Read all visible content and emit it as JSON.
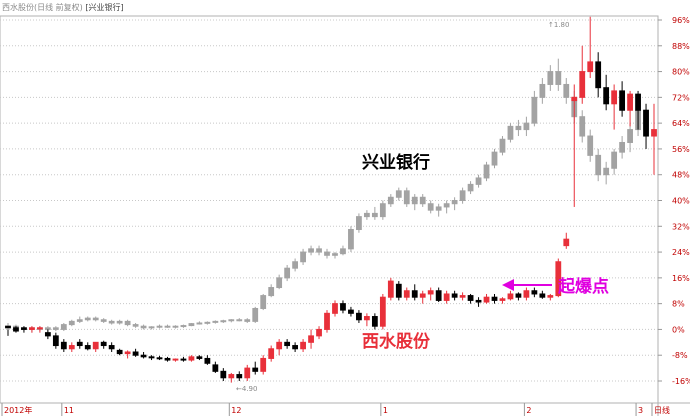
{
  "header": {
    "primary": "西水股份(日线 前复权)",
    "secondary": "[兴业银行]"
  },
  "chart_data": {
    "type": "candlestick",
    "yunit": "%",
    "ylim": [
      -20,
      100
    ],
    "yticks": [
      "96%",
      "88%",
      "80%",
      "72%",
      "64%",
      "56%",
      "48%",
      "40%",
      "32%",
      "24%",
      "16%",
      "8%",
      "0%",
      "-8%",
      "-16%"
    ],
    "ytick_values": [
      96,
      88,
      80,
      72,
      64,
      56,
      48,
      40,
      32,
      24,
      16,
      8,
      0,
      -8,
      -16
    ],
    "xlabels": [
      {
        "text": "2012年",
        "index": 0
      },
      {
        "text": "11",
        "index": 7
      },
      {
        "text": "12",
        "index": 28
      },
      {
        "text": "1",
        "index": 47
      },
      {
        "text": "2",
        "index": 65
      },
      {
        "text": "3",
        "index": 79
      },
      {
        "text": "日线",
        "index": 81
      }
    ],
    "annotations": {
      "series_a_label": "兴业银行",
      "series_b_label": "西水股份",
      "arrow_label": "起爆点",
      "high_label": "↑1.80",
      "low_label": "←4.90"
    },
    "colors": {
      "up": "#e8303a",
      "down": "#000000",
      "overlay": "#a3a3a3",
      "arrow": "#e000e0",
      "axis_text": "#c00000"
    },
    "series": [
      {
        "name": "西水股份",
        "kind": "candle",
        "ohlc": [
          [
            1,
            0,
            -2,
            0.5
          ],
          [
            0.5,
            1,
            -1,
            -0.5
          ],
          [
            0.5,
            1,
            -1,
            0
          ],
          [
            0,
            1,
            -1,
            0.5
          ],
          [
            0.5,
            1,
            -1,
            0.5
          ],
          [
            -1,
            0,
            -3,
            -2
          ],
          [
            -2,
            -1,
            -6,
            -5
          ],
          [
            -4,
            -3,
            -7,
            -6
          ],
          [
            -6,
            -4,
            -7,
            -5
          ],
          [
            -4,
            -3,
            -6,
            -5
          ],
          [
            -5,
            -4,
            -6.5,
            -6
          ],
          [
            -6,
            -4,
            -7,
            -4
          ],
          [
            -4,
            -3.5,
            -6,
            -5
          ],
          [
            -5,
            -4,
            -7,
            -6
          ],
          [
            -6.5,
            -6,
            -8,
            -7.5
          ],
          [
            -7.5,
            -6.5,
            -9,
            -7
          ],
          [
            -7,
            -6,
            -8.5,
            -8
          ],
          [
            -8,
            -7,
            -9,
            -8.5
          ],
          [
            -8.5,
            -8,
            -9.5,
            -8.8
          ],
          [
            -8.8,
            -8.2,
            -9.5,
            -9
          ],
          [
            -9,
            -8.5,
            -10,
            -9.5
          ],
          [
            -9.5,
            -9,
            -10,
            -9.2
          ],
          [
            -9.2,
            -8.5,
            -10,
            -9.5
          ],
          [
            -9.5,
            -8,
            -10,
            -8.5
          ],
          [
            -8.5,
            -8,
            -9.5,
            -9
          ],
          [
            -9,
            -8,
            -11,
            -10.5
          ],
          [
            -11,
            -10,
            -13.5,
            -13
          ],
          [
            -13,
            -12,
            -16,
            -15
          ],
          [
            -15,
            -13.5,
            -16.5,
            -14
          ],
          [
            -14,
            -13,
            -16,
            -15
          ],
          [
            -15,
            -11,
            -16,
            -12
          ],
          [
            -12,
            -10,
            -14,
            -13
          ],
          [
            -13,
            -8,
            -14,
            -9
          ],
          [
            -9,
            -5,
            -10,
            -6
          ],
          [
            -6,
            -3,
            -8,
            -4
          ],
          [
            -4,
            -3,
            -6,
            -5
          ],
          [
            -5,
            -4,
            -7,
            -6
          ],
          [
            -6,
            -3,
            -7,
            -4
          ],
          [
            -4,
            0,
            -6,
            -2
          ],
          [
            -2,
            1,
            -3,
            0
          ],
          [
            0,
            6,
            -1,
            5
          ],
          [
            5,
            9,
            4,
            8
          ],
          [
            8,
            9,
            5,
            6
          ],
          [
            6,
            7,
            4,
            5
          ],
          [
            5,
            6,
            2,
            3
          ],
          [
            3,
            5,
            1,
            4
          ],
          [
            4,
            5,
            0,
            1
          ],
          [
            1,
            11,
            0,
            10
          ],
          [
            10,
            16,
            9,
            15
          ],
          [
            14,
            15,
            9,
            10
          ],
          [
            10,
            13,
            9,
            12
          ],
          [
            12,
            14,
            9,
            10
          ],
          [
            10,
            12,
            8,
            11
          ],
          [
            11,
            13,
            9,
            12
          ],
          [
            12,
            13,
            8.5,
            9
          ],
          [
            9,
            12,
            8,
            11
          ],
          [
            11,
            12,
            9,
            10
          ],
          [
            10,
            11.5,
            9,
            10.5
          ],
          [
            10.5,
            11,
            8,
            9
          ],
          [
            9,
            10,
            7,
            8.5
          ],
          [
            8.5,
            11,
            8,
            10
          ],
          [
            10,
            11,
            8,
            9
          ],
          [
            9,
            10,
            8,
            9.5
          ],
          [
            9.5,
            12,
            9,
            11
          ],
          [
            11,
            11.5,
            9,
            10
          ],
          [
            10,
            13,
            9,
            12
          ],
          [
            12,
            13,
            10,
            11
          ],
          [
            11,
            12,
            9.5,
            10
          ],
          [
            10,
            11,
            9,
            10.5
          ],
          [
            10.5,
            22,
            10,
            21
          ],
          [
            26,
            30,
            25,
            28
          ]
        ]
      },
      {
        "name": "兴业银行",
        "kind": "candle-overlay",
        "start_index": 0,
        "ohlc": [
          [
            1,
            2,
            0,
            1
          ],
          [
            1,
            1.5,
            0,
            0.5
          ],
          [
            0.5,
            1,
            -0.5,
            0
          ],
          [
            0,
            1,
            -1,
            0.5
          ],
          [
            0.5,
            1,
            -0.5,
            0
          ],
          [
            0,
            1,
            -1,
            0.5
          ],
          [
            0.5,
            1,
            -0.5,
            0
          ],
          [
            0,
            2,
            -0.5,
            1.5
          ],
          [
            1.5,
            3,
            1,
            2.5
          ],
          [
            2.5,
            4,
            2,
            3
          ],
          [
            3,
            4,
            2.5,
            3.5
          ],
          [
            3.5,
            4,
            2.5,
            3
          ],
          [
            3,
            3.5,
            2,
            2.5
          ],
          [
            2.5,
            3,
            1.5,
            2
          ],
          [
            2,
            3,
            1.5,
            2.5
          ],
          [
            2.5,
            3,
            1,
            1.5
          ],
          [
            1.5,
            2,
            0.5,
            1
          ],
          [
            1,
            1.5,
            0,
            0.5
          ],
          [
            0.5,
            1,
            0,
            0.8
          ],
          [
            0.8,
            1.5,
            0.3,
            1
          ],
          [
            1,
            1.5,
            0.5,
            0.8
          ],
          [
            0.8,
            1.3,
            0.3,
            1
          ],
          [
            1,
            1.5,
            0.5,
            1.2
          ],
          [
            1.2,
            2,
            1,
            1.8
          ],
          [
            1.8,
            2.5,
            1.5,
            2
          ],
          [
            2,
            2.5,
            1.5,
            2.2
          ],
          [
            2.2,
            2.8,
            1.8,
            2.5
          ],
          [
            2.5,
            3,
            2,
            2.7
          ],
          [
            2.7,
            3.2,
            2.2,
            3
          ],
          [
            3,
            3.5,
            2.5,
            3
          ],
          [
            3,
            3.5,
            2,
            2.5
          ],
          [
            2.5,
            7,
            2,
            6.5
          ],
          [
            6.5,
            11,
            6,
            10.5
          ],
          [
            10.5,
            14,
            10,
            13
          ],
          [
            13,
            17,
            12.5,
            16
          ],
          [
            16,
            20,
            15,
            19
          ],
          [
            19,
            22,
            18,
            21
          ],
          [
            21,
            25,
            20,
            24
          ],
          [
            24,
            26,
            23,
            25
          ],
          [
            25,
            26,
            23,
            24
          ],
          [
            24,
            25,
            22,
            23
          ],
          [
            23,
            24,
            22,
            23.5
          ],
          [
            23.5,
            26,
            23,
            25
          ],
          [
            25,
            32,
            24,
            31
          ],
          [
            31,
            36,
            30,
            35
          ],
          [
            35,
            37,
            34,
            36
          ],
          [
            36,
            38,
            34,
            35
          ],
          [
            35,
            40,
            34,
            39
          ],
          [
            39,
            42,
            38,
            41
          ],
          [
            41,
            44,
            40,
            43
          ],
          [
            43,
            44,
            38,
            39
          ],
          [
            39,
            42,
            37,
            41
          ],
          [
            41,
            42,
            38,
            39
          ],
          [
            39,
            40,
            36,
            37
          ],
          [
            37,
            39,
            35,
            38
          ],
          [
            38,
            40,
            36,
            39
          ],
          [
            39,
            41,
            37,
            40
          ],
          [
            40,
            44,
            39,
            43
          ],
          [
            43,
            46,
            42,
            45
          ],
          [
            45,
            48,
            44,
            47
          ],
          [
            47,
            52,
            46,
            51
          ],
          [
            51,
            56,
            50,
            55
          ],
          [
            55,
            60,
            54,
            59
          ],
          [
            59,
            64,
            58,
            63
          ],
          [
            63,
            65,
            60,
            62
          ],
          [
            62,
            66,
            60,
            64
          ],
          [
            64,
            74,
            63,
            72
          ],
          [
            72,
            78,
            70,
            76
          ],
          [
            76,
            82,
            74,
            80
          ],
          [
            80,
            84,
            74,
            76
          ],
          [
            76,
            78,
            70,
            72
          ],
          [
            72,
            74,
            64,
            66
          ],
          [
            66,
            68,
            58,
            60
          ],
          [
            60,
            62,
            52,
            54
          ],
          [
            54,
            56,
            46,
            48
          ],
          [
            48,
            52,
            45,
            50
          ],
          [
            50,
            56,
            48,
            55
          ],
          [
            55,
            60,
            53,
            58
          ],
          [
            58,
            64,
            55,
            62
          ],
          [
            62,
            70,
            60,
            68
          ],
          [
            68,
            70,
            60,
            62
          ]
        ]
      },
      {
        "name": "兴业银行 (late)",
        "kind": "candle",
        "start_index": 71,
        "ohlc": [
          [
            71,
            76,
            38,
            72
          ],
          [
            72,
            88,
            70,
            80
          ],
          [
            80,
            97,
            78,
            83
          ],
          [
            83,
            86,
            72,
            75
          ],
          [
            75,
            79,
            68,
            70
          ],
          [
            70,
            76,
            62,
            74
          ],
          [
            74,
            77,
            66,
            68
          ],
          [
            68,
            74,
            63,
            73
          ],
          [
            73,
            74,
            62,
            68
          ],
          [
            68,
            70,
            56,
            60
          ],
          [
            60,
            70,
            48,
            62
          ]
        ]
      }
    ]
  }
}
